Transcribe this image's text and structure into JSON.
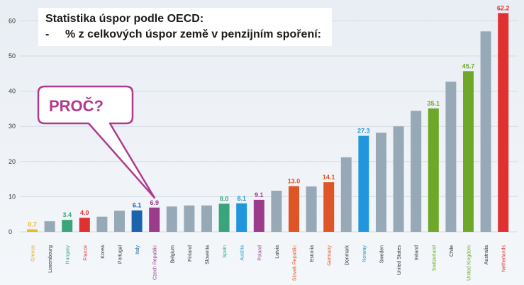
{
  "title": {
    "line1": "Statistika úspor podle OECD:",
    "line2_bullet": "-",
    "line2": "% z celkových úspor země v penzijním spoření:"
  },
  "callout": {
    "text": "PROČ?",
    "color": "#b03a8e"
  },
  "chart_data": {
    "type": "bar",
    "ylim": [
      0,
      65
    ],
    "yticks": [
      0,
      10,
      20,
      30,
      40,
      50,
      60
    ],
    "grid": true,
    "categories": [
      "Greece",
      "Luxembourg",
      "Hungary",
      "France",
      "Korea",
      "Portugal",
      "Italy",
      "Czech Republic",
      "Belgium",
      "Finland",
      "Slovenia",
      "Spain",
      "Austria",
      "Poland",
      "Latvia",
      "Slovak Republic",
      "Estonia",
      "Germany",
      "Denmark",
      "Norway",
      "Sweden",
      "United States",
      "Ireland",
      "Switzerland",
      "Chile",
      "United Kingdom",
      "Australia",
      "Netherlands"
    ],
    "values": [
      0.7,
      3.0,
      3.4,
      4.0,
      4.3,
      6.0,
      6.1,
      6.9,
      7.2,
      7.5,
      7.5,
      8.0,
      8.1,
      9.1,
      11.7,
      13.0,
      12.9,
      14.1,
      21.2,
      27.3,
      28.2,
      30.0,
      34.4,
      35.1,
      42.7,
      45.7,
      57.0,
      62.2
    ],
    "data_labels": [
      "0.7",
      "",
      "3.4",
      "4.0",
      "",
      "",
      "6.1",
      "6.9",
      "",
      "",
      "",
      "8.0",
      "8.1",
      "9.1",
      "",
      "13.0",
      "",
      "14.1",
      "",
      "27.3",
      "",
      "",
      "",
      "35.1",
      "",
      "45.7",
      "",
      "62.2"
    ],
    "bar_colors": [
      "#f0b429",
      "#97a9b6",
      "#3aa57a",
      "#e03131",
      "#97a9b6",
      "#97a9b6",
      "#1c63ae",
      "#9b3b8c",
      "#97a9b6",
      "#97a9b6",
      "#97a9b6",
      "#3aa57a",
      "#2196dd",
      "#9b3b8c",
      "#97a9b6",
      "#e05526",
      "#97a9b6",
      "#e05526",
      "#97a9b6",
      "#2196dd",
      "#97a9b6",
      "#97a9b6",
      "#97a9b6",
      "#6fa829",
      "#97a9b6",
      "#6fa829",
      "#97a9b6",
      "#e03131"
    ],
    "label_colors": [
      "#e6a817",
      "#333333",
      "#3aa57a",
      "#e03131",
      "#333333",
      "#333333",
      "#1c63ae",
      "#9b3b8c",
      "#333333",
      "#333333",
      "#333333",
      "#3aa57a",
      "#2196dd",
      "#9b3b8c",
      "#333333",
      "#e05526",
      "#333333",
      "#e05526",
      "#333333",
      "#2196dd",
      "#333333",
      "#333333",
      "#333333",
      "#6fa829",
      "#333333",
      "#6fa829",
      "#333333",
      "#e03131"
    ]
  }
}
